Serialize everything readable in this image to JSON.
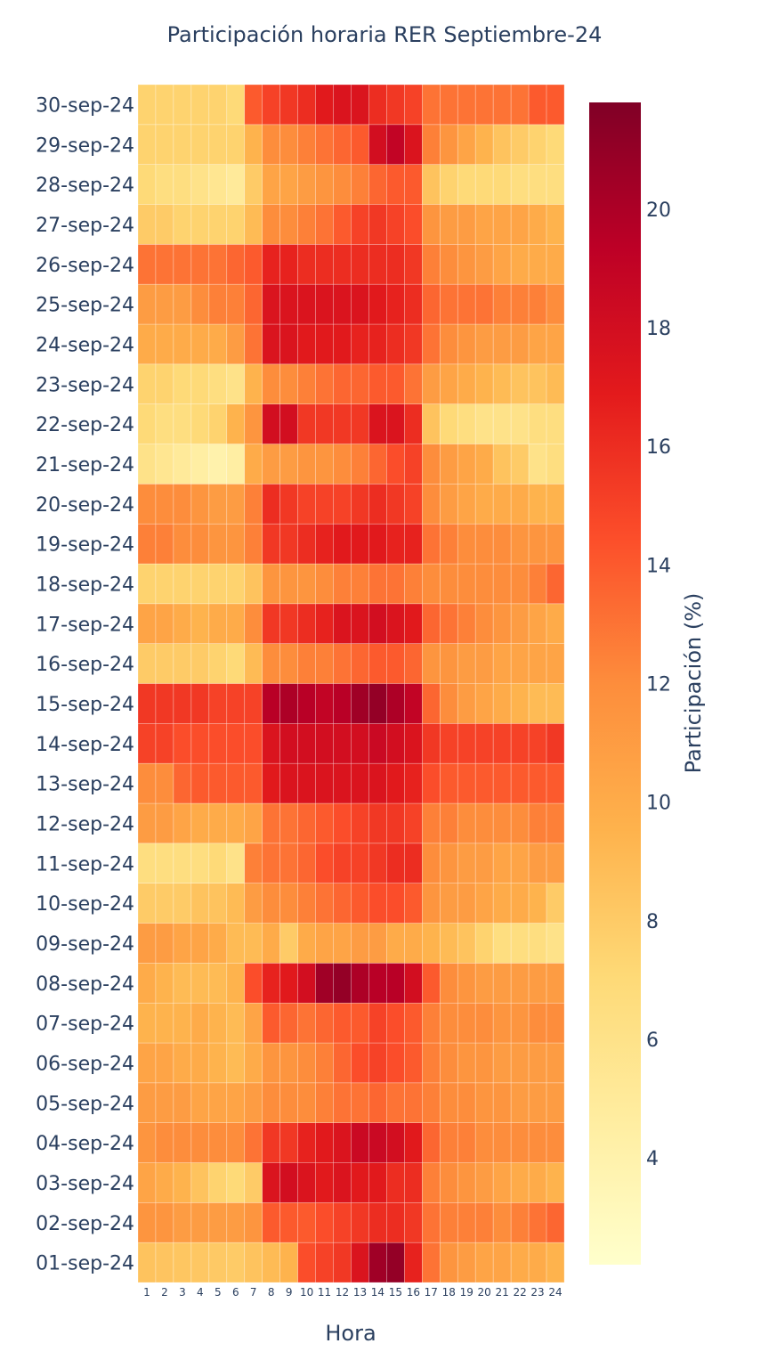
{
  "chart_data": {
    "type": "heatmap",
    "title": "Participación horaria RER Septiembre-24",
    "xlabel": "Hora",
    "colorbar_title": "Participación (%)",
    "x": [
      1,
      2,
      3,
      4,
      5,
      6,
      7,
      8,
      9,
      10,
      11,
      12,
      13,
      14,
      15,
      16,
      17,
      18,
      19,
      20,
      21,
      22,
      23,
      24
    ],
    "y": [
      "01-sep-24",
      "02-sep-24",
      "03-sep-24",
      "04-sep-24",
      "05-sep-24",
      "06-sep-24",
      "07-sep-24",
      "08-sep-24",
      "09-sep-24",
      "10-sep-24",
      "11-sep-24",
      "12-sep-24",
      "13-sep-24",
      "14-sep-24",
      "15-sep-24",
      "16-sep-24",
      "17-sep-24",
      "18-sep-24",
      "19-sep-24",
      "20-sep-24",
      "21-sep-24",
      "22-sep-24",
      "23-sep-24",
      "24-sep-24",
      "25-sep-24",
      "26-sep-24",
      "27-sep-24",
      "28-sep-24",
      "29-sep-24",
      "30-sep-24"
    ],
    "z": [
      [
        8.5,
        8.4,
        8.3,
        8.2,
        8.1,
        8.0,
        8.5,
        9.0,
        9.5,
        14.5,
        15.0,
        15.5,
        17.5,
        20.5,
        21.0,
        16.5,
        13.0,
        11.5,
        11.0,
        10.5,
        10.5,
        10.0,
        10.0,
        9.5
      ],
      [
        11.5,
        11.5,
        11.0,
        11.0,
        11.0,
        11.0,
        11.5,
        14.0,
        14.0,
        14.0,
        14.5,
        15.0,
        15.5,
        16.0,
        16.0,
        15.5,
        13.0,
        12.5,
        12.5,
        12.5,
        12.0,
        12.5,
        13.0,
        13.5
      ],
      [
        10.5,
        10.0,
        9.5,
        8.5,
        7.5,
        7.0,
        8.0,
        17.5,
        18.0,
        17.5,
        17.0,
        17.5,
        17.0,
        17.0,
        16.0,
        16.0,
        12.5,
        12.0,
        11.5,
        11.0,
        10.5,
        10.0,
        10.0,
        9.5
      ],
      [
        11.5,
        12.0,
        12.0,
        12.0,
        12.0,
        12.0,
        13.0,
        15.5,
        15.5,
        16.5,
        17.0,
        17.5,
        18.5,
        18.5,
        18.0,
        17.0,
        13.5,
        12.5,
        12.5,
        12.0,
        12.0,
        12.0,
        12.0,
        12.0
      ],
      [
        11.0,
        11.0,
        11.0,
        10.5,
        10.5,
        10.5,
        11.0,
        12.0,
        12.0,
        12.0,
        12.5,
        13.0,
        13.0,
        13.5,
        13.0,
        13.0,
        12.5,
        12.0,
        12.0,
        11.5,
        11.5,
        11.0,
        11.0,
        11.0
      ],
      [
        10.5,
        10.5,
        10.0,
        10.0,
        9.5,
        9.0,
        10.0,
        11.5,
        11.5,
        12.0,
        12.5,
        13.5,
        14.5,
        15.0,
        14.5,
        14.0,
        12.5,
        12.0,
        11.5,
        11.5,
        11.0,
        11.0,
        11.0,
        11.0
      ],
      [
        9.5,
        9.5,
        9.5,
        10.0,
        9.5,
        9.0,
        10.5,
        14.0,
        13.5,
        13.0,
        13.5,
        14.0,
        14.0,
        15.0,
        14.5,
        14.0,
        12.5,
        12.0,
        12.0,
        12.0,
        11.5,
        11.5,
        12.0,
        12.0
      ],
      [
        10.0,
        9.5,
        9.0,
        9.0,
        9.0,
        9.5,
        14.5,
        16.5,
        17.0,
        18.0,
        20.5,
        21.0,
        20.0,
        19.5,
        19.5,
        18.0,
        14.0,
        12.0,
        11.5,
        11.0,
        11.0,
        11.0,
        11.0,
        11.0
      ],
      [
        11.0,
        11.0,
        10.5,
        10.5,
        10.0,
        9.0,
        9.0,
        10.0,
        8.0,
        10.0,
        10.5,
        10.5,
        11.0,
        11.0,
        10.0,
        10.0,
        9.5,
        9.0,
        8.5,
        7.5,
        6.5,
        6.5,
        6.5,
        6.0
      ],
      [
        8.0,
        8.0,
        8.0,
        8.5,
        8.5,
        9.0,
        11.0,
        12.0,
        12.0,
        12.5,
        13.0,
        13.5,
        14.0,
        14.5,
        14.5,
        14.0,
        11.5,
        11.0,
        11.0,
        10.5,
        10.0,
        10.0,
        9.5,
        8.0
      ],
      [
        6.5,
        6.5,
        6.5,
        6.5,
        7.0,
        6.0,
        12.5,
        13.0,
        13.0,
        13.5,
        14.5,
        15.0,
        15.0,
        15.5,
        16.0,
        16.0,
        12.0,
        11.5,
        11.0,
        11.0,
        10.5,
        10.5,
        11.0,
        11.0
      ],
      [
        11.0,
        11.0,
        10.5,
        10.0,
        10.0,
        10.0,
        10.5,
        13.0,
        13.0,
        13.5,
        14.0,
        14.5,
        15.0,
        15.5,
        15.5,
        15.0,
        12.5,
        12.5,
        12.0,
        12.0,
        12.0,
        12.0,
        12.5,
        12.5
      ],
      [
        12.0,
        12.0,
        13.5,
        14.0,
        14.0,
        14.0,
        14.0,
        17.0,
        17.5,
        17.5,
        17.5,
        17.5,
        17.5,
        17.5,
        17.0,
        16.5,
        14.5,
        14.0,
        14.0,
        14.0,
        14.0,
        14.0,
        14.0,
        14.0
      ],
      [
        15.0,
        15.0,
        14.5,
        14.5,
        14.5,
        14.5,
        14.5,
        17.5,
        18.0,
        18.0,
        18.0,
        18.0,
        18.0,
        18.5,
        18.0,
        17.5,
        15.5,
        15.0,
        15.0,
        15.0,
        15.0,
        15.0,
        15.0,
        15.5
      ],
      [
        15.5,
        15.5,
        15.5,
        15.5,
        15.0,
        15.0,
        15.0,
        19.5,
        20.0,
        19.5,
        19.0,
        19.5,
        20.5,
        21.0,
        20.0,
        19.0,
        13.5,
        12.0,
        11.0,
        10.5,
        10.0,
        9.5,
        9.0,
        9.0
      ],
      [
        8.0,
        8.0,
        8.0,
        8.0,
        7.5,
        7.0,
        9.0,
        12.0,
        12.0,
        12.5,
        12.5,
        13.0,
        13.5,
        14.0,
        14.0,
        13.5,
        11.5,
        11.5,
        11.0,
        11.0,
        10.5,
        10.5,
        10.5,
        10.5
      ],
      [
        10.5,
        10.5,
        10.0,
        9.5,
        10.0,
        10.0,
        12.0,
        15.5,
        15.5,
        16.0,
        16.5,
        17.5,
        17.5,
        18.0,
        17.5,
        17.0,
        13.5,
        13.0,
        12.5,
        12.0,
        11.5,
        11.0,
        10.5,
        10.0
      ],
      [
        7.5,
        7.5,
        7.5,
        7.5,
        7.5,
        7.5,
        8.5,
        11.5,
        11.5,
        11.5,
        12.0,
        12.5,
        12.5,
        13.0,
        13.0,
        12.5,
        12.0,
        12.0,
        12.0,
        12.0,
        12.0,
        12.0,
        12.5,
        13.5
      ],
      [
        12.5,
        12.5,
        12.0,
        12.0,
        11.5,
        11.5,
        12.5,
        15.5,
        15.5,
        16.0,
        16.5,
        17.0,
        17.0,
        17.0,
        16.5,
        16.5,
        13.0,
        12.5,
        12.0,
        12.0,
        12.0,
        11.5,
        11.5,
        11.5
      ],
      [
        12.0,
        12.0,
        12.0,
        11.5,
        11.0,
        11.0,
        12.5,
        16.0,
        15.5,
        15.0,
        15.0,
        15.0,
        15.5,
        16.0,
        15.5,
        15.0,
        12.0,
        11.0,
        10.5,
        10.0,
        10.0,
        10.0,
        9.5,
        9.5
      ],
      [
        6.0,
        5.5,
        5.0,
        4.5,
        4.0,
        4.5,
        10.0,
        11.0,
        11.0,
        11.5,
        11.5,
        12.0,
        12.5,
        13.5,
        14.5,
        15.0,
        12.0,
        11.0,
        10.5,
        10.0,
        8.5,
        8.0,
        6.0,
        6.5
      ],
      [
        7.0,
        6.5,
        6.5,
        7.0,
        7.5,
        9.5,
        11.5,
        18.0,
        18.0,
        15.5,
        15.5,
        15.5,
        15.5,
        17.5,
        17.5,
        16.0,
        8.5,
        7.0,
        6.5,
        6.0,
        6.0,
        6.0,
        6.5,
        6.5
      ],
      [
        7.5,
        7.5,
        7.0,
        7.0,
        6.5,
        6.0,
        9.5,
        12.0,
        12.0,
        12.5,
        13.0,
        13.5,
        13.5,
        14.0,
        14.0,
        13.0,
        11.0,
        10.5,
        10.0,
        9.5,
        9.0,
        8.5,
        8.5,
        9.0
      ],
      [
        10.0,
        10.0,
        10.0,
        10.0,
        10.0,
        11.0,
        13.0,
        17.5,
        17.5,
        17.0,
        17.0,
        17.0,
        16.5,
        16.5,
        16.0,
        15.5,
        13.0,
        12.0,
        11.5,
        11.0,
        11.0,
        11.0,
        10.5,
        10.5
      ],
      [
        11.0,
        11.0,
        11.0,
        12.0,
        12.5,
        12.5,
        13.5,
        17.5,
        17.5,
        17.5,
        17.5,
        17.5,
        17.5,
        17.0,
        16.5,
        16.0,
        13.5,
        13.0,
        13.0,
        13.0,
        12.5,
        12.5,
        12.5,
        12.0
      ],
      [
        13.0,
        13.0,
        13.0,
        13.0,
        13.0,
        13.5,
        14.0,
        16.5,
        16.5,
        16.0,
        16.0,
        16.0,
        16.0,
        16.0,
        16.0,
        15.5,
        12.5,
        12.0,
        11.5,
        11.0,
        10.5,
        10.0,
        10.0,
        10.0
      ],
      [
        8.0,
        8.0,
        7.5,
        7.5,
        7.5,
        7.5,
        9.0,
        12.0,
        12.0,
        12.5,
        13.0,
        14.0,
        15.0,
        15.5,
        15.0,
        14.5,
        11.5,
        11.0,
        11.0,
        10.5,
        10.5,
        10.5,
        10.0,
        9.5
      ],
      [
        7.0,
        6.5,
        6.5,
        6.0,
        5.5,
        5.0,
        8.0,
        10.5,
        10.5,
        11.0,
        11.5,
        12.0,
        12.5,
        13.5,
        14.0,
        14.0,
        8.5,
        7.5,
        7.0,
        7.0,
        7.0,
        6.5,
        6.5,
        6.5
      ],
      [
        7.5,
        7.5,
        7.5,
        7.5,
        7.5,
        7.5,
        9.5,
        12.0,
        12.0,
        12.5,
        13.0,
        13.5,
        14.0,
        18.0,
        19.0,
        17.5,
        12.5,
        11.5,
        10.5,
        9.5,
        8.5,
        8.0,
        7.5,
        7.0
      ],
      [
        7.5,
        7.5,
        7.5,
        7.5,
        7.5,
        7.0,
        14.0,
        15.0,
        15.5,
        16.0,
        17.0,
        17.5,
        17.5,
        16.0,
        15.5,
        15.0,
        13.0,
        13.0,
        13.0,
        13.0,
        13.0,
        13.0,
        14.0,
        14.0
      ]
    ],
    "zrange": [
      2.2,
      21.8
    ],
    "colorbar_ticks": [
      4,
      6,
      8,
      10,
      12,
      14,
      16,
      18,
      20
    ],
    "colorscale": [
      "#ffffcc",
      "#ffeda0",
      "#fed976",
      "#feb24c",
      "#fd8d3c",
      "#fc4e2a",
      "#e31a1c",
      "#bd0026",
      "#800026"
    ]
  }
}
